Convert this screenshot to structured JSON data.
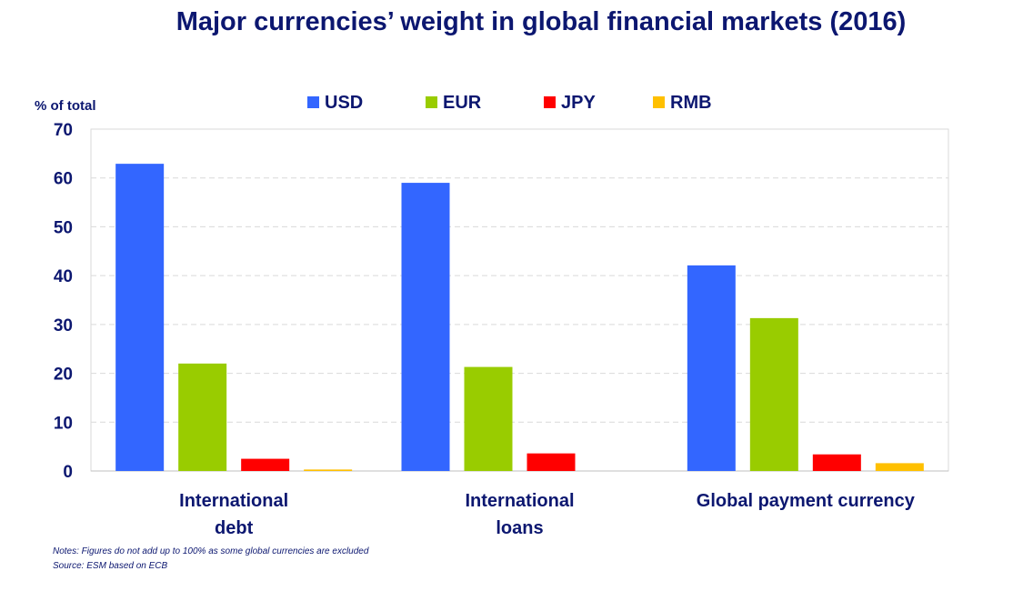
{
  "chart_data": {
    "type": "bar",
    "title": "Major currencies’ weight in global financial markets (2016)",
    "ylabel": "% of total",
    "xlabel": "",
    "ylim": [
      0,
      70
    ],
    "yticks": [
      0,
      10,
      20,
      30,
      40,
      50,
      60,
      70
    ],
    "grid": true,
    "legend_position": "top",
    "categories": [
      [
        "International",
        "debt"
      ],
      [
        "International",
        "loans"
      ],
      [
        "Global payment currency"
      ]
    ],
    "series": [
      {
        "name": "USD",
        "color": "#3366ff",
        "values": [
          62.9,
          59.0,
          42.1
        ]
      },
      {
        "name": "EUR",
        "color": "#99cc00",
        "values": [
          22.0,
          21.3,
          31.3
        ]
      },
      {
        "name": "JPY",
        "color": "#ff0000",
        "values": [
          2.5,
          3.6,
          3.4
        ]
      },
      {
        "name": "RMB",
        "color": "#ffc000",
        "values": [
          0.3,
          0.0,
          1.6
        ]
      }
    ]
  },
  "notes": {
    "note": "Notes: Figures do not add up to 100% as some global currencies are excluded",
    "source": "Source: ESM based on ECB"
  }
}
